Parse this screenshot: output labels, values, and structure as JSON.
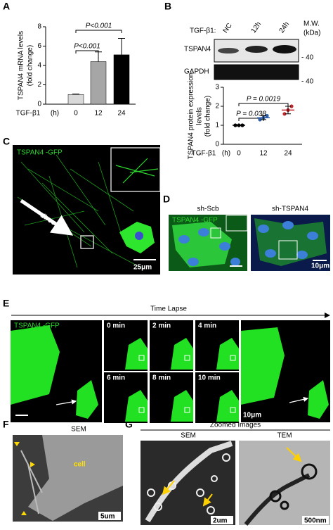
{
  "letters": [
    "A",
    "B",
    "C",
    "D",
    "E",
    "F",
    "G"
  ],
  "chart_data": [
    {
      "type": "bar",
      "ylabel": [
        "TSPAN4 mRNA levels",
        "(fold change)"
      ],
      "xlabel": "TGF-β1",
      "xunit": "(h)",
      "categories": [
        "0",
        "12",
        "24"
      ],
      "values": [
        1.0,
        4.4,
        5.1
      ],
      "errors": [
        0.05,
        1.0,
        1.7
      ],
      "colors": [
        "#d9d9d9",
        "#a6a6a6",
        "#000000"
      ],
      "ylim": [
        0,
        8
      ],
      "yticks": [
        0,
        2,
        4,
        6,
        8
      ],
      "annotations": [
        "P<0.001",
        "P<0.001"
      ]
    },
    {
      "type": "scatter",
      "ylabel": [
        "TSPAN4 protein expression",
        "levels",
        "(fold change)"
      ],
      "xlabel": "TGF-β1",
      "xunit": "(h)",
      "categories": [
        "0",
        "12",
        "24"
      ],
      "points": [
        [
          1,
          1,
          1
        ],
        [
          1.3,
          1.4,
          1.5
        ],
        [
          1.6,
          1.8,
          2.0
        ]
      ],
      "means": [
        1,
        1.4,
        1.8
      ],
      "errors": [
        0,
        0.1,
        0.2
      ],
      "colors": [
        "#000000",
        "#2e5fa8",
        "#c0272d"
      ],
      "ylim": [
        0,
        3
      ],
      "yticks": [
        0,
        1,
        2,
        3
      ],
      "annotations": [
        "P = 0.038",
        "P = 0.0019"
      ]
    }
  ],
  "blot": {
    "treatment": "TGF-β1:",
    "lanes": [
      "NC",
      "12h",
      "24h"
    ],
    "mw": [
      "M.W.",
      "(kDa)"
    ],
    "proteins": [
      "TSPAN4",
      "GAPDH"
    ],
    "markers": [
      "- 40",
      "- 40"
    ]
  },
  "panel_c": {
    "label": "TSPAN4 -GFP",
    "arrow": "direction",
    "scale": "25μm"
  },
  "panel_d": {
    "groups": [
      "sh-Scb",
      "sh-TSPAN4"
    ],
    "label": "TSPAN4 -GFP",
    "scale": "10μm"
  },
  "panel_e": {
    "title": "Time Lapse",
    "label": "TSPAN4 -GFP",
    "times": [
      "0 min",
      "2 min",
      "4 min",
      "6 min",
      "8 min",
      "10 min"
    ],
    "scale": "10μm"
  },
  "panel_f": {
    "title": "SEM",
    "label": "cell",
    "scale": "5um"
  },
  "panel_g": {
    "title": "Zoomed Images",
    "images": [
      "SEM",
      "TEM"
    ],
    "scales": [
      "2um",
      "500nm"
    ]
  }
}
